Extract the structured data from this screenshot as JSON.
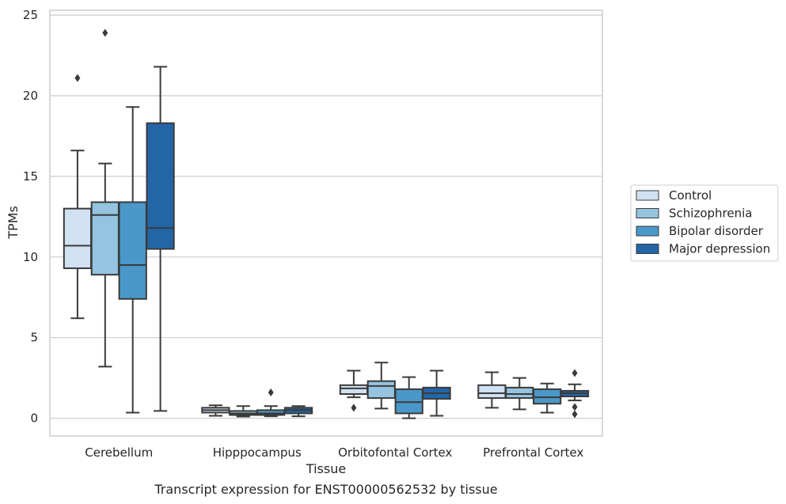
{
  "chart_data": {
    "type": "box",
    "caption": "Transcript expression for ENST00000562532 by tissue",
    "xlabel": "Tissue",
    "ylabel": "TPMs",
    "ylim": [
      -1.1,
      25.3
    ],
    "yticks": [
      0,
      5,
      10,
      15,
      20,
      25
    ],
    "categories": [
      "Cerebellum",
      "Hipppocampus",
      "Orbitofontal Cortex",
      "Prefrontal Cortex"
    ],
    "grid": "horizontal",
    "legend_position": "right",
    "series": [
      {
        "name": "Control",
        "color": "#d0e1f2",
        "boxes": [
          {
            "whisker_low": 6.2,
            "q1": 9.3,
            "median": 10.7,
            "q3": 13.0,
            "whisker_high": 16.6,
            "outliers": [
              21.1
            ]
          },
          {
            "whisker_low": 0.15,
            "q1": 0.35,
            "median": 0.5,
            "q3": 0.65,
            "whisker_high": 0.8,
            "outliers": []
          },
          {
            "whisker_low": 1.3,
            "q1": 1.5,
            "median": 1.85,
            "q3": 2.05,
            "whisker_high": 2.95,
            "outliers": [
              0.65
            ]
          },
          {
            "whisker_low": 0.65,
            "q1": 1.25,
            "median": 1.55,
            "q3": 2.05,
            "whisker_high": 2.85,
            "outliers": []
          }
        ]
      },
      {
        "name": "Schizophrenia",
        "color": "#94c4df",
        "boxes": [
          {
            "whisker_low": 3.2,
            "q1": 8.9,
            "median": 12.6,
            "q3": 13.4,
            "whisker_high": 15.8,
            "outliers": [
              23.9
            ]
          },
          {
            "whisker_low": 0.1,
            "q1": 0.2,
            "median": 0.3,
            "q3": 0.45,
            "whisker_high": 0.75,
            "outliers": []
          },
          {
            "whisker_low": 0.6,
            "q1": 1.25,
            "median": 2.0,
            "q3": 2.3,
            "whisker_high": 3.45,
            "outliers": []
          },
          {
            "whisker_low": 0.55,
            "q1": 1.25,
            "median": 1.5,
            "q3": 1.9,
            "whisker_high": 2.5,
            "outliers": []
          }
        ]
      },
      {
        "name": "Bipolar disorder",
        "color": "#4a98c9",
        "boxes": [
          {
            "whisker_low": 0.35,
            "q1": 7.4,
            "median": 9.5,
            "q3": 13.4,
            "whisker_high": 19.3,
            "outliers": []
          },
          {
            "whisker_low": 0.12,
            "q1": 0.2,
            "median": 0.3,
            "q3": 0.5,
            "whisker_high": 0.75,
            "outliers": [
              1.6
            ]
          },
          {
            "whisker_low": 0.0,
            "q1": 0.3,
            "median": 1.0,
            "q3": 1.8,
            "whisker_high": 2.55,
            "outliers": []
          },
          {
            "whisker_low": 0.35,
            "q1": 0.9,
            "median": 1.3,
            "q3": 1.8,
            "whisker_high": 2.15,
            "outliers": []
          }
        ]
      },
      {
        "name": "Major depression",
        "color": "#2366a8",
        "boxes": [
          {
            "whisker_low": 0.45,
            "q1": 10.5,
            "median": 11.8,
            "q3": 18.3,
            "whisker_high": 21.8,
            "outliers": []
          },
          {
            "whisker_low": 0.12,
            "q1": 0.3,
            "median": 0.5,
            "q3": 0.65,
            "whisker_high": 0.75,
            "outliers": []
          },
          {
            "whisker_low": 0.15,
            "q1": 1.2,
            "median": 1.55,
            "q3": 1.9,
            "whisker_high": 2.95,
            "outliers": []
          },
          {
            "whisker_low": 1.1,
            "q1": 1.35,
            "median": 1.55,
            "q3": 1.7,
            "whisker_high": 2.1,
            "outliers": [
              2.8,
              0.7,
              0.25
            ]
          }
        ]
      }
    ]
  }
}
